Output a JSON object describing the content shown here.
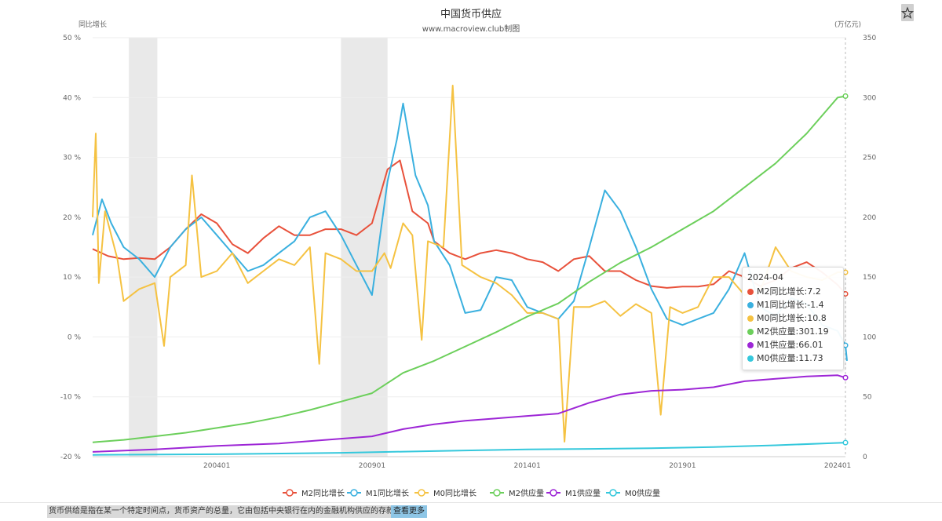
{
  "chart_data": {
    "type": "line",
    "title": "中国货币供应",
    "subtitle": "www.macroview.club制图",
    "y_left": {
      "label": "同比增长",
      "min": -20,
      "max": 50,
      "ticks": [
        "-20 %",
        "-10 %",
        "0 %",
        "10 %",
        "20 %",
        "30 %",
        "40 %",
        "50 %"
      ]
    },
    "y_right": {
      "label": "(万亿元)",
      "min": 0,
      "max": 350,
      "ticks": [
        "0",
        "50",
        "100",
        "150",
        "200",
        "250",
        "300",
        "350"
      ]
    },
    "x_ticks": [
      "200401",
      "200901",
      "201401",
      "201901",
      "202401"
    ],
    "x_range": [
      "2000-01",
      "2024-04"
    ],
    "shaded_periods": [
      [
        "2001-03",
        "2002-02"
      ],
      [
        "2008-01",
        "2009-07"
      ]
    ],
    "grid": true,
    "legend_position": "bottom",
    "series": [
      {
        "name": "M2同比增长",
        "axis": "left",
        "color": "#e8513b",
        "points": [
          [
            2000.0,
            14.7
          ],
          [
            2000.5,
            13.5
          ],
          [
            2001.0,
            13.0
          ],
          [
            2001.5,
            13.2
          ],
          [
            2002.0,
            13.0
          ],
          [
            2002.5,
            15.0
          ],
          [
            2003.0,
            18.0
          ],
          [
            2003.5,
            20.5
          ],
          [
            2004.0,
            19.0
          ],
          [
            2004.5,
            15.5
          ],
          [
            2005.0,
            14.0
          ],
          [
            2005.5,
            16.5
          ],
          [
            2006.0,
            18.5
          ],
          [
            2006.5,
            17.0
          ],
          [
            2007.0,
            17.0
          ],
          [
            2007.5,
            18.0
          ],
          [
            2008.0,
            18.0
          ],
          [
            2008.5,
            17.0
          ],
          [
            2009.0,
            19.0
          ],
          [
            2009.5,
            28.0
          ],
          [
            2009.9,
            29.5
          ],
          [
            2010.3,
            21.0
          ],
          [
            2010.8,
            19.0
          ],
          [
            2011.0,
            16.0
          ],
          [
            2011.5,
            14.0
          ],
          [
            2012.0,
            13.0
          ],
          [
            2012.5,
            14.0
          ],
          [
            2013.0,
            14.5
          ],
          [
            2013.5,
            14.0
          ],
          [
            2014.0,
            13.0
          ],
          [
            2014.5,
            12.5
          ],
          [
            2015.0,
            11.0
          ],
          [
            2015.5,
            13.0
          ],
          [
            2016.0,
            13.5
          ],
          [
            2016.5,
            11.0
          ],
          [
            2017.0,
            11.0
          ],
          [
            2017.5,
            9.5
          ],
          [
            2018.0,
            8.5
          ],
          [
            2018.5,
            8.2
          ],
          [
            2019.0,
            8.4
          ],
          [
            2019.5,
            8.4
          ],
          [
            2020.0,
            8.8
          ],
          [
            2020.5,
            11.0
          ],
          [
            2021.0,
            10.0
          ],
          [
            2021.5,
            8.5
          ],
          [
            2022.0,
            9.5
          ],
          [
            2022.5,
            11.5
          ],
          [
            2023.0,
            12.5
          ],
          [
            2023.5,
            10.8
          ],
          [
            2024.0,
            8.7
          ],
          [
            2024.25,
            7.2
          ]
        ]
      },
      {
        "name": "M1同比增长",
        "axis": "left",
        "color": "#3ab0df",
        "points": [
          [
            2000.0,
            17.0
          ],
          [
            2000.3,
            23.0
          ],
          [
            2000.6,
            19.0
          ],
          [
            2001.0,
            15.0
          ],
          [
            2001.5,
            13.0
          ],
          [
            2002.0,
            10.0
          ],
          [
            2002.5,
            15.0
          ],
          [
            2003.0,
            18.0
          ],
          [
            2003.5,
            20.0
          ],
          [
            2004.0,
            17.0
          ],
          [
            2004.5,
            14.0
          ],
          [
            2005.0,
            11.0
          ],
          [
            2005.5,
            12.0
          ],
          [
            2006.0,
            14.0
          ],
          [
            2006.5,
            16.0
          ],
          [
            2007.0,
            20.0
          ],
          [
            2007.5,
            21.0
          ],
          [
            2008.0,
            17.0
          ],
          [
            2008.5,
            12.0
          ],
          [
            2009.0,
            7.0
          ],
          [
            2009.5,
            26.0
          ],
          [
            2009.8,
            33.0
          ],
          [
            2010.0,
            39.0
          ],
          [
            2010.4,
            27.0
          ],
          [
            2010.8,
            22.0
          ],
          [
            2011.0,
            16.0
          ],
          [
            2011.5,
            12.0
          ],
          [
            2012.0,
            4.0
          ],
          [
            2012.5,
            4.5
          ],
          [
            2013.0,
            10.0
          ],
          [
            2013.5,
            9.5
          ],
          [
            2014.0,
            5.0
          ],
          [
            2014.5,
            4.0
          ],
          [
            2015.0,
            3.0
          ],
          [
            2015.5,
            6.0
          ],
          [
            2016.0,
            15.0
          ],
          [
            2016.5,
            24.5
          ],
          [
            2017.0,
            21.0
          ],
          [
            2017.5,
            15.0
          ],
          [
            2018.0,
            8.0
          ],
          [
            2018.5,
            3.0
          ],
          [
            2019.0,
            2.0
          ],
          [
            2019.5,
            3.0
          ],
          [
            2020.0,
            4.0
          ],
          [
            2020.5,
            8.0
          ],
          [
            2021.0,
            14.0
          ],
          [
            2021.5,
            5.0
          ],
          [
            2022.0,
            3.5
          ],
          [
            2022.5,
            6.5
          ],
          [
            2023.0,
            5.5
          ],
          [
            2023.5,
            2.0
          ],
          [
            2024.0,
            1.0
          ],
          [
            2024.25,
            -1.4
          ],
          [
            2024.3,
            -4.0
          ]
        ]
      },
      {
        "name": "M0同比增长",
        "axis": "left",
        "color": "#f5c242",
        "points": [
          [
            2000.0,
            20.0
          ],
          [
            2000.1,
            34.0
          ],
          [
            2000.2,
            9.0
          ],
          [
            2000.4,
            21.0
          ],
          [
            2000.8,
            13.0
          ],
          [
            2001.0,
            6.0
          ],
          [
            2001.5,
            8.0
          ],
          [
            2002.0,
            9.0
          ],
          [
            2002.3,
            -1.5
          ],
          [
            2002.5,
            10.0
          ],
          [
            2003.0,
            12.0
          ],
          [
            2003.2,
            27.0
          ],
          [
            2003.5,
            10.0
          ],
          [
            2004.0,
            11.0
          ],
          [
            2004.5,
            14.0
          ],
          [
            2005.0,
            9.0
          ],
          [
            2005.5,
            11.0
          ],
          [
            2006.0,
            13.0
          ],
          [
            2006.5,
            12.0
          ],
          [
            2007.0,
            15.0
          ],
          [
            2007.3,
            -4.5
          ],
          [
            2007.5,
            14.0
          ],
          [
            2008.0,
            13.0
          ],
          [
            2008.5,
            11.0
          ],
          [
            2009.0,
            11.0
          ],
          [
            2009.4,
            14.0
          ],
          [
            2009.6,
            11.5
          ],
          [
            2010.0,
            19.0
          ],
          [
            2010.3,
            17.0
          ],
          [
            2010.6,
            -0.5
          ],
          [
            2010.8,
            16.0
          ],
          [
            2011.3,
            15.0
          ],
          [
            2011.6,
            42.0
          ],
          [
            2011.9,
            12.0
          ],
          [
            2012.5,
            10.0
          ],
          [
            2013.0,
            9.0
          ],
          [
            2013.5,
            7.0
          ],
          [
            2014.0,
            4.0
          ],
          [
            2014.5,
            4.0
          ],
          [
            2015.0,
            3.0
          ],
          [
            2015.2,
            -17.5
          ],
          [
            2015.5,
            5.0
          ],
          [
            2016.0,
            5.0
          ],
          [
            2016.5,
            6.0
          ],
          [
            2017.0,
            3.5
          ],
          [
            2017.5,
            5.5
          ],
          [
            2018.0,
            4.0
          ],
          [
            2018.3,
            -13.0
          ],
          [
            2018.6,
            5.0
          ],
          [
            2019.0,
            4.0
          ],
          [
            2019.5,
            5.0
          ],
          [
            2020.0,
            10.0
          ],
          [
            2020.5,
            10.0
          ],
          [
            2021.0,
            7.0
          ],
          [
            2021.5,
            7.5
          ],
          [
            2022.0,
            15.0
          ],
          [
            2022.5,
            11.0
          ],
          [
            2023.0,
            10.0
          ],
          [
            2023.5,
            9.5
          ],
          [
            2024.0,
            10.8
          ],
          [
            2024.25,
            10.8
          ]
        ]
      },
      {
        "name": "M2供应量",
        "axis": "right",
        "color": "#6ccf5b",
        "points": [
          [
            2000.0,
            12
          ],
          [
            2001.0,
            14
          ],
          [
            2002.0,
            17
          ],
          [
            2003.0,
            20
          ],
          [
            2004.0,
            24
          ],
          [
            2005.0,
            28
          ],
          [
            2006.0,
            33
          ],
          [
            2007.0,
            39
          ],
          [
            2008.0,
            46
          ],
          [
            2009.0,
            53
          ],
          [
            2010.0,
            70
          ],
          [
            2011.0,
            80
          ],
          [
            2012.0,
            92
          ],
          [
            2013.0,
            104
          ],
          [
            2014.0,
            117
          ],
          [
            2015.0,
            128
          ],
          [
            2016.0,
            146
          ],
          [
            2017.0,
            162
          ],
          [
            2018.0,
            175
          ],
          [
            2019.0,
            190
          ],
          [
            2020.0,
            205
          ],
          [
            2021.0,
            225
          ],
          [
            2022.0,
            245
          ],
          [
            2023.0,
            270
          ],
          [
            2024.0,
            300
          ],
          [
            2024.25,
            301.19
          ]
        ]
      },
      {
        "name": "M1供应量",
        "axis": "right",
        "color": "#9d26d6",
        "points": [
          [
            2000.0,
            4
          ],
          [
            2002.0,
            6
          ],
          [
            2004.0,
            9
          ],
          [
            2006.0,
            11
          ],
          [
            2008.0,
            15
          ],
          [
            2009.0,
            17
          ],
          [
            2010.0,
            23
          ],
          [
            2011.0,
            27
          ],
          [
            2012.0,
            30
          ],
          [
            2013.0,
            32
          ],
          [
            2014.0,
            34
          ],
          [
            2015.0,
            36
          ],
          [
            2016.0,
            45
          ],
          [
            2017.0,
            52
          ],
          [
            2018.0,
            55
          ],
          [
            2019.0,
            56
          ],
          [
            2020.0,
            58
          ],
          [
            2021.0,
            63
          ],
          [
            2022.0,
            65
          ],
          [
            2023.0,
            67
          ],
          [
            2024.0,
            68
          ],
          [
            2024.25,
            66.01
          ]
        ]
      },
      {
        "name": "M0供应量",
        "axis": "right",
        "color": "#35c8dc",
        "points": [
          [
            2000.0,
            1.5
          ],
          [
            2004.0,
            2.0
          ],
          [
            2008.0,
            3.2
          ],
          [
            2010.0,
            4.2
          ],
          [
            2012.0,
            5.2
          ],
          [
            2014.0,
            6.0
          ],
          [
            2016.0,
            6.5
          ],
          [
            2018.0,
            7.0
          ],
          [
            2020.0,
            8.0
          ],
          [
            2022.0,
            9.5
          ],
          [
            2024.0,
            11.5
          ],
          [
            2024.25,
            11.73
          ]
        ]
      }
    ]
  },
  "tooltip": {
    "date": "2024-04",
    "rows": [
      {
        "label": "M2同比增长:7.2",
        "color": "#e8513b"
      },
      {
        "label": "M1同比增长:-1.4",
        "color": "#3ab0df"
      },
      {
        "label": "M0同比增长:10.8",
        "color": "#f5c242"
      },
      {
        "label": "M2供应量:301.19",
        "color": "#6ccf5b"
      },
      {
        "label": "M1供应量:66.01",
        "color": "#9d26d6"
      },
      {
        "label": "M0供应量:11.73",
        "color": "#35c8dc"
      }
    ]
  },
  "footer": {
    "note": "货币供给是指在某一个特定时间点，货币资产的总量，它由包括中央银行在内的金融机构供应的存款货",
    "more_label": "查看更多"
  },
  "icons": {
    "star": "star-icon"
  }
}
